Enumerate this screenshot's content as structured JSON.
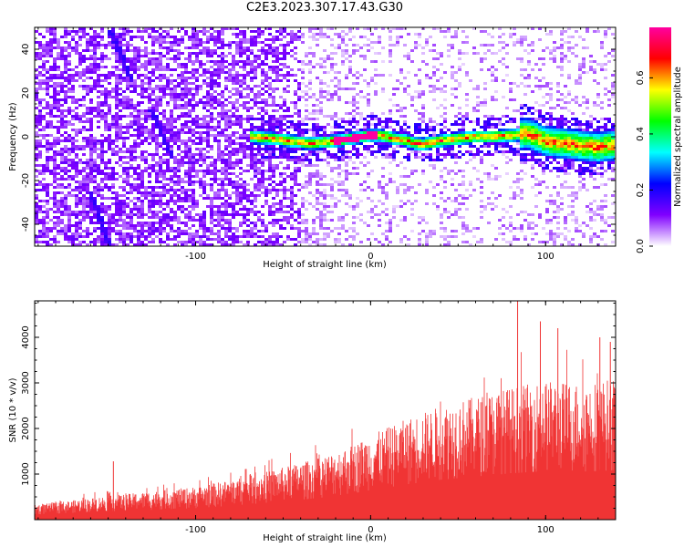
{
  "title": "C2E3.2023.307.17.43.G30",
  "chart_data": [
    {
      "type": "heatmap",
      "xlabel": "Height of straight line (km)",
      "ylabel": "Frequency (Hz)",
      "xlim": [
        -192,
        140
      ],
      "ylim": [
        -50,
        50
      ],
      "x_ticks": [
        -100,
        0,
        100
      ],
      "y_ticks": [
        -40,
        -20,
        0,
        20,
        40
      ],
      "colorbar": {
        "label": "Normalized spectral amplitude",
        "range": [
          0,
          0.78
        ],
        "ticks": [
          "0.0",
          "0.2",
          "0.4",
          "0.6"
        ],
        "colors": [
          "#ffffff",
          "#8000ff",
          "#0000ff",
          "#00ffff",
          "#00ff00",
          "#ffff00",
          "#ff0000",
          "#ff00a0"
        ]
      },
      "ridge": {
        "x": [
          -68,
          -55,
          -45,
          -35,
          -25,
          -15,
          -8,
          0,
          5,
          10,
          15,
          20,
          25,
          30,
          40,
          50,
          60,
          70,
          80,
          85,
          90,
          95,
          100,
          110,
          120,
          130,
          138
        ],
        "y": [
          0,
          -1,
          -2,
          -3,
          -2.5,
          -1.5,
          -0.5,
          0.5,
          0.5,
          0,
          -1,
          -1.5,
          -3,
          -3.5,
          -2,
          -1,
          0,
          0,
          0.5,
          1,
          1.5,
          0,
          -2,
          -3,
          -4,
          -5,
          -4
        ]
      },
      "diagonal_streaks": [
        {
          "x": [
            -149,
            -136
          ],
          "y": [
            49,
            25
          ]
        },
        {
          "x": [
            -125,
            -113
          ],
          "y": [
            12,
            -10
          ]
        },
        {
          "x": [
            -160,
            -149
          ],
          "y": [
            -25,
            -50
          ]
        }
      ]
    },
    {
      "type": "bar",
      "xlabel": "Height of straight line (km)",
      "ylabel": "SNR (10 * v/v)",
      "xlim": [
        -192,
        140
      ],
      "ylim": [
        0,
        4800
      ],
      "x_ticks": [
        -100,
        0,
        100
      ],
      "y_ticks": [
        1000,
        2000,
        3000,
        4000
      ],
      "color": "#f03434",
      "envelope": {
        "x": [
          -192,
          -150,
          -100,
          -70,
          -50,
          -30,
          -10,
          0,
          20,
          40,
          60,
          80,
          100,
          120,
          140
        ],
        "y": [
          320,
          520,
          720,
          950,
          1150,
          1350,
          1650,
          1850,
          2200,
          2500,
          2700,
          2900,
          3050,
          3000,
          3100
        ]
      },
      "peaks": [
        {
          "x": -147,
          "y": 1280
        },
        {
          "x": 84,
          "y": 4800
        },
        {
          "x": 97,
          "y": 4350
        },
        {
          "x": 107,
          "y": 4200
        },
        {
          "x": 131,
          "y": 4000
        },
        {
          "x": 137,
          "y": 3900
        }
      ]
    }
  ]
}
